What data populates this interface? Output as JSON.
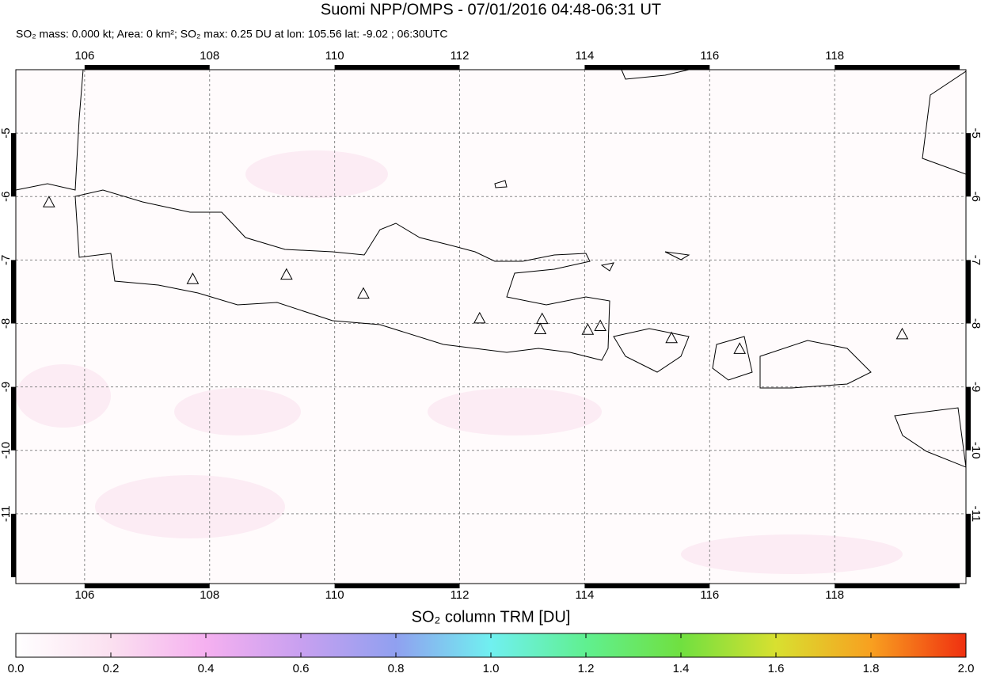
{
  "title": "Suomi NPP/OMPS - 07/01/2016 04:48-06:31 UT",
  "subtitle": "SO₂ mass: 0.000 kt; Area: 0 km²; SO₂ max: 0.25 DU at lon: 105.56 lat: -9.02 ; 06:30UTC",
  "map": {
    "xlim": [
      104.9,
      120.1
    ],
    "ylim": [
      -12.1,
      -4
    ],
    "xticks": [
      106,
      108,
      110,
      112,
      114,
      116,
      118
    ],
    "yticks": [
      -5,
      -6,
      -7,
      -8,
      -9,
      -10,
      -11
    ],
    "grid": true,
    "volcanoes": {
      "lon": [
        105.43,
        107.73,
        109.23,
        110.46,
        112.32,
        113.32,
        113.29,
        114.05,
        114.25,
        115.39,
        116.48,
        119.08
      ],
      "lat": [
        -6.1,
        -7.31,
        -7.24,
        -7.54,
        -7.93,
        -7.94,
        -8.1,
        -8.11,
        -8.05,
        -8.24,
        -8.41,
        -8.18
      ]
    }
  },
  "colorbar": {
    "label": "SO₂ column TRM [DU]",
    "lim": [
      0,
      2
    ],
    "ticks": [
      {
        "value": 0,
        "label": "0.0"
      },
      0.2,
      0.4,
      0.6,
      0.8,
      {
        "value": 1,
        "label": "1.0"
      },
      1.2,
      1.4,
      1.6,
      1.8,
      {
        "value": 2,
        "label": "2.0"
      }
    ]
  }
}
